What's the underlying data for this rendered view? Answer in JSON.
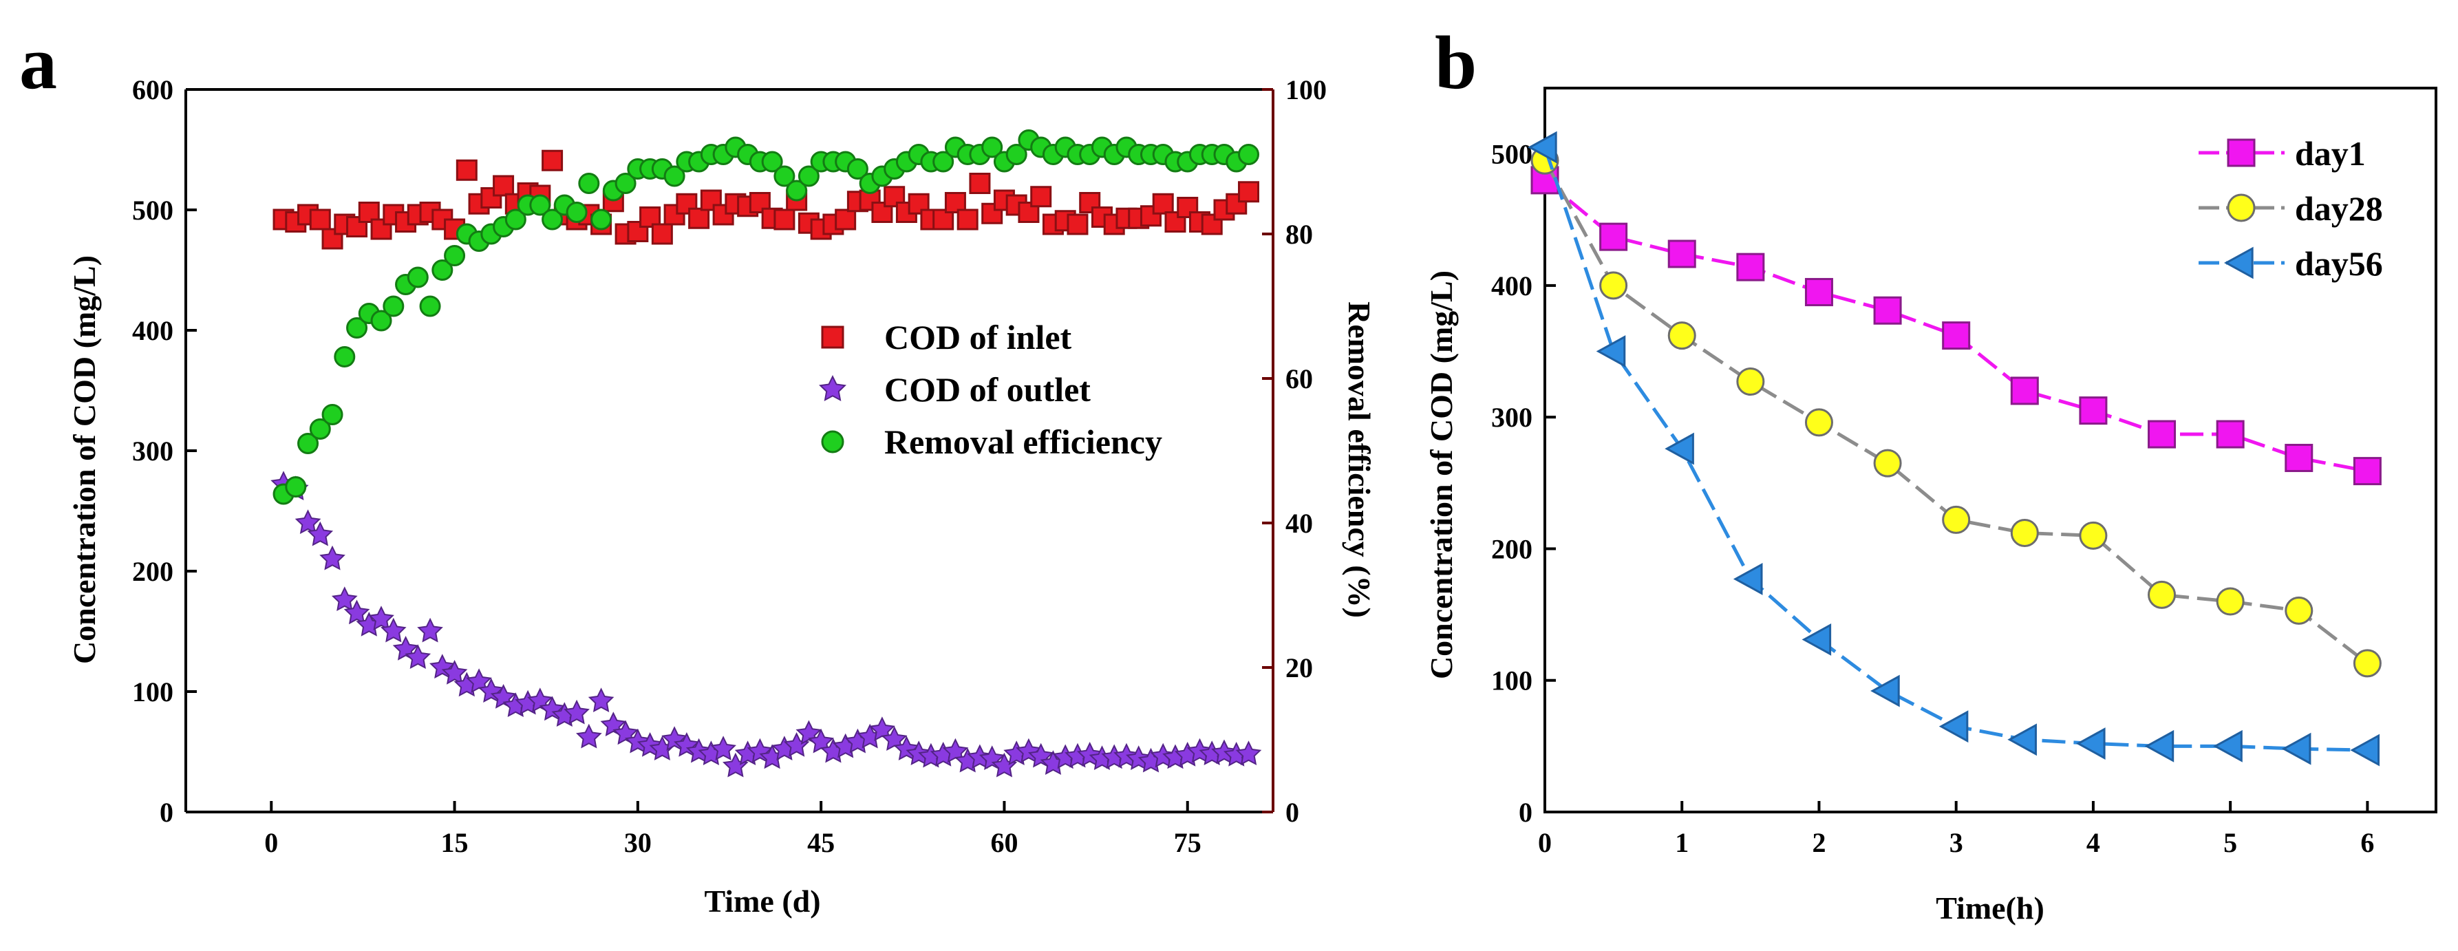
{
  "chart_data": [
    {
      "type": "scatter",
      "panel_label": "a",
      "xlabel": "Time (d)",
      "ylabel": "Concentration  of  COD (mg/L)",
      "y2label": "Removal efficiency (%)",
      "xlim": [
        -7,
        82
      ],
      "ylim": [
        0,
        600
      ],
      "y2lim": [
        0,
        100
      ],
      "xticks": [
        0,
        15,
        30,
        45,
        60,
        75
      ],
      "yticks": [
        0,
        100,
        200,
        300,
        400,
        500,
        600
      ],
      "y2ticks": [
        0,
        20,
        40,
        60,
        80,
        100
      ],
      "legend_position": "center-right",
      "colors": {
        "axis": "#000000",
        "right_axis": "#6b0000"
      },
      "series": [
        {
          "name": "COD of inlet",
          "marker": "square",
          "color": "#e8191f",
          "axis": "left",
          "x": [
            1,
            2,
            3,
            4,
            5,
            6,
            7,
            8,
            9,
            10,
            11,
            12,
            13,
            14,
            15,
            16,
            17,
            18,
            19,
            20,
            21,
            22,
            23,
            24,
            25,
            26,
            27,
            28,
            29,
            30,
            31,
            32,
            33,
            34,
            35,
            36,
            37,
            38,
            39,
            40,
            41,
            42,
            43,
            44,
            45,
            46,
            47,
            48,
            49,
            50,
            51,
            52,
            53,
            54,
            55,
            56,
            57,
            58,
            59,
            60,
            61,
            62,
            63,
            64,
            65,
            66,
            67,
            68,
            69,
            70,
            71,
            72,
            73,
            74,
            75,
            76,
            77,
            78,
            79,
            80
          ],
          "values": [
            492,
            490,
            496,
            492,
            476,
            488,
            486,
            498,
            484,
            496,
            490,
            496,
            498,
            492,
            484,
            533,
            505,
            510,
            520,
            505,
            514,
            512,
            541,
            496,
            492,
            496,
            488,
            507,
            480,
            482,
            494,
            480,
            496,
            505,
            493,
            508,
            496,
            505,
            503,
            506,
            493,
            492,
            508,
            489,
            484,
            488,
            492,
            507,
            508,
            498,
            511,
            498,
            505,
            492,
            492,
            506,
            492,
            522,
            497,
            508,
            504,
            498,
            511,
            488,
            491,
            488,
            506,
            494,
            488,
            493,
            493,
            495,
            505,
            490,
            502,
            490,
            488,
            500,
            505,
            515
          ]
        },
        {
          "name": "COD of outlet",
          "marker": "star",
          "color": "#8a3ae0",
          "axis": "left",
          "x": [
            1,
            2,
            3,
            4,
            5,
            6,
            7,
            8,
            9,
            10,
            11,
            12,
            13,
            14,
            15,
            16,
            17,
            18,
            19,
            20,
            21,
            22,
            23,
            24,
            25,
            26,
            27,
            28,
            29,
            30,
            31,
            32,
            33,
            34,
            35,
            36,
            37,
            38,
            39,
            40,
            41,
            42,
            43,
            44,
            45,
            46,
            47,
            48,
            49,
            50,
            51,
            52,
            53,
            54,
            55,
            56,
            57,
            58,
            59,
            60,
            61,
            62,
            63,
            64,
            65,
            66,
            67,
            68,
            69,
            70,
            71,
            72,
            73,
            74,
            75,
            76,
            77,
            78,
            79,
            80
          ],
          "values": [
            272,
            268,
            240,
            230,
            210,
            176,
            165,
            155,
            160,
            150,
            135,
            128,
            150,
            120,
            115,
            105,
            108,
            100,
            95,
            88,
            90,
            92,
            85,
            80,
            82,
            62,
            92,
            72,
            65,
            58,
            55,
            52,
            60,
            55,
            50,
            48,
            52,
            38,
            48,
            50,
            45,
            52,
            55,
            65,
            58,
            50,
            54,
            58,
            62,
            68,
            60,
            52,
            48,
            46,
            47,
            50,
            42,
            45,
            44,
            38,
            48,
            50,
            46,
            40,
            45,
            46,
            47,
            44,
            45,
            46,
            44,
            42,
            46,
            45,
            47,
            50,
            48,
            49,
            47,
            48
          ]
        },
        {
          "name": "Removal efficiency",
          "marker": "circle",
          "color": "#1fcf1f",
          "axis": "right",
          "x": [
            1,
            2,
            3,
            4,
            5,
            6,
            7,
            8,
            9,
            10,
            11,
            12,
            13,
            14,
            15,
            16,
            17,
            18,
            19,
            20,
            21,
            22,
            23,
            24,
            25,
            26,
            27,
            28,
            29,
            30,
            31,
            32,
            33,
            34,
            35,
            36,
            37,
            38,
            39,
            40,
            41,
            42,
            43,
            44,
            45,
            46,
            47,
            48,
            49,
            50,
            51,
            52,
            53,
            54,
            55,
            56,
            57,
            58,
            59,
            60,
            61,
            62,
            63,
            64,
            65,
            66,
            67,
            68,
            69,
            70,
            71,
            72,
            73,
            74,
            75,
            76,
            77,
            78,
            79,
            80
          ],
          "values": [
            44,
            45,
            51,
            53,
            55,
            63,
            67,
            69,
            68,
            70,
            73,
            74,
            70,
            75,
            77,
            80,
            79,
            80,
            81,
            82,
            84,
            84,
            82,
            84,
            83,
            87,
            82,
            86,
            87,
            89,
            89,
            89,
            88,
            90,
            90,
            91,
            91,
            92,
            91,
            90,
            90,
            88,
            86,
            88,
            90,
            90,
            90,
            89,
            87,
            88,
            89,
            90,
            91,
            90,
            90,
            92,
            91,
            91,
            92,
            90,
            91,
            93,
            92,
            91,
            92,
            91,
            91,
            92,
            91,
            92,
            91,
            91,
            91,
            90,
            90,
            91,
            91,
            91,
            90,
            91
          ]
        }
      ]
    },
    {
      "type": "line",
      "panel_label": "b",
      "xlabel": "Time(h)",
      "ylabel": "Concentration of COD (mg/L)",
      "xlim": [
        0,
        6.5
      ],
      "ylim": [
        0,
        550
      ],
      "xticks": [
        0,
        1,
        2,
        3,
        4,
        5,
        6
      ],
      "yticks": [
        0,
        100,
        200,
        300,
        400,
        500
      ],
      "legend_position": "top-right",
      "x": [
        0,
        0.5,
        1,
        1.5,
        2,
        2.5,
        3,
        3.5,
        4,
        4.5,
        5,
        5.5,
        6
      ],
      "series": [
        {
          "name": "day1",
          "marker": "square",
          "color": "#f016f0",
          "edge": "#8a1a8a",
          "values": [
            480,
            437,
            424,
            414,
            395,
            381,
            362,
            320,
            305,
            287,
            287,
            269,
            259
          ]
        },
        {
          "name": "day28",
          "marker": "circle",
          "color": "#ffff1a",
          "edge": "#6d6d6d",
          "line": "#8c8c8c",
          "values": [
            495,
            400,
            362,
            327,
            296,
            265,
            222,
            212,
            210,
            165,
            160,
            153,
            113
          ]
        },
        {
          "name": "day56",
          "marker": "triangle-left",
          "color": "#2d8be0",
          "edge": "#1f5fa0",
          "values": [
            505,
            350,
            276,
            177,
            131,
            92,
            65,
            55,
            52,
            50,
            50,
            48,
            47
          ]
        }
      ]
    }
  ]
}
